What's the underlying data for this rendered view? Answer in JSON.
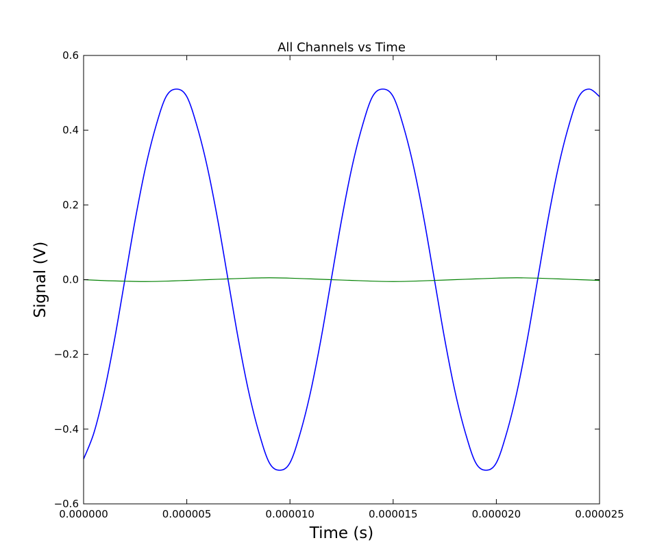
{
  "chart_data": {
    "type": "line",
    "title": "All Channels vs Time",
    "xlabel": "Time (s)",
    "ylabel": "Signal (V)",
    "xlim": [
      0,
      2.5e-05
    ],
    "ylim": [
      -0.6,
      0.6
    ],
    "x_ticks": [
      0,
      5e-06,
      1e-05,
      1.5e-05,
      2e-05,
      2.5e-05
    ],
    "x_tick_labels": [
      "0.000000",
      "0.000005",
      "0.000010",
      "0.000015",
      "0.000020",
      "0.000025"
    ],
    "y_ticks": [
      -0.6,
      -0.4,
      -0.2,
      0.0,
      0.2,
      0.4,
      0.6
    ],
    "y_tick_labels": [
      "−0.6",
      "−0.4",
      "−0.2",
      "0.0",
      "0.2",
      "0.4",
      "0.6"
    ],
    "grid": false,
    "series": [
      {
        "color": "#0000ff",
        "x": [
          0,
          5e-07,
          1e-06,
          1.5e-06,
          2e-06,
          2.5e-06,
          3e-06,
          3.5e-06,
          4e-06,
          4.5e-06,
          5e-06,
          5.5e-06,
          6e-06,
          6.5e-06,
          7e-06,
          7.5e-06,
          8e-06,
          8.5e-06,
          9e-06,
          9.5e-06,
          1e-05,
          1.05e-05,
          1.1e-05,
          1.15e-05,
          1.2e-05,
          1.25e-05,
          1.3e-05,
          1.35e-05,
          1.4e-05,
          1.45e-05,
          1.5e-05,
          1.55e-05,
          1.6e-05,
          1.65e-05,
          1.7e-05,
          1.75e-05,
          1.8e-05,
          1.85e-05,
          1.9e-05,
          1.95e-05,
          2e-05,
          2.05e-05,
          2.1e-05,
          2.15e-05,
          2.2e-05,
          2.25e-05,
          2.3e-05,
          2.35e-05,
          2.4e-05,
          2.45e-05,
          2.5e-05
        ],
        "y": [
          -0.48,
          -0.41,
          -0.3,
          -0.16,
          0.0,
          0.16,
          0.3,
          0.41,
          0.49,
          0.51,
          0.49,
          0.41,
          0.3,
          0.16,
          0.0,
          -0.16,
          -0.3,
          -0.41,
          -0.49,
          -0.51,
          -0.49,
          -0.41,
          -0.3,
          -0.16,
          0.0,
          0.16,
          0.3,
          0.41,
          0.49,
          0.51,
          0.49,
          0.41,
          0.3,
          0.16,
          0.0,
          -0.16,
          -0.3,
          -0.41,
          -0.49,
          -0.51,
          -0.49,
          -0.41,
          -0.3,
          -0.16,
          0.0,
          0.16,
          0.3,
          0.41,
          0.49,
          0.51,
          0.49
        ]
      },
      {
        "color": "#008000",
        "x": [
          0,
          1e-06,
          2e-06,
          3e-06,
          4e-06,
          5e-06,
          6e-06,
          7e-06,
          8e-06,
          9e-06,
          1e-05,
          1.1e-05,
          1.2e-05,
          1.3e-05,
          1.4e-05,
          1.5e-05,
          1.6e-05,
          1.7e-05,
          1.8e-05,
          1.9e-05,
          2e-05,
          2.1e-05,
          2.2e-05,
          2.3e-05,
          2.4e-05,
          2.5e-05
        ],
        "y": [
          0.0,
          -0.0025,
          -0.004,
          -0.005,
          -0.004,
          -0.002,
          0.0,
          0.002,
          0.004,
          0.005,
          0.004,
          0.002,
          0.0,
          -0.002,
          -0.004,
          -0.005,
          -0.004,
          -0.002,
          0.0,
          0.002,
          0.004,
          0.005,
          0.004,
          0.002,
          0.0,
          -0.002
        ]
      }
    ]
  }
}
